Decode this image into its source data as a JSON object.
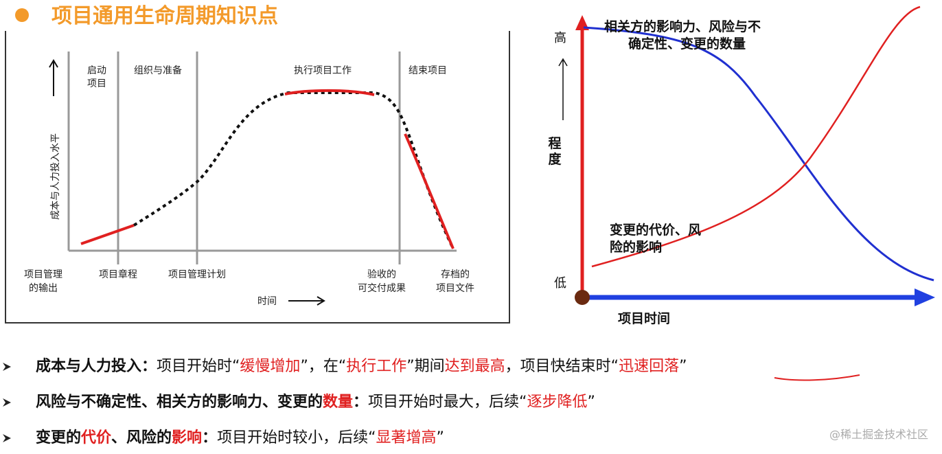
{
  "header": {
    "title": "项目通用生命周期知识点"
  },
  "left_diagram": {
    "y_label": "成本与人力投入水平",
    "phases": [
      [
        "启动",
        "项目"
      ],
      [
        "组织与准备"
      ],
      [
        "执行项目工作"
      ],
      [
        "结束项目"
      ]
    ],
    "milestones": [
      [
        "项目管理",
        "的输出"
      ],
      [
        "项目章程"
      ],
      [
        "项目管理计划"
      ],
      [
        "验收的",
        "可交付成果"
      ],
      [
        "存档的",
        "项目文件"
      ]
    ],
    "x_label": "时间"
  },
  "right_diagram": {
    "high": "高",
    "low": "低",
    "y_label": [
      "程",
      "度"
    ],
    "blue_curve_label": [
      "相关方的影响力、风险与不",
      "确定性、变更的数量"
    ],
    "red_curve_label": [
      "变更的代价、风",
      "险的影响"
    ],
    "x_label": "项目时间"
  },
  "bullets": [
    [
      {
        "text": "成本与人力投入：",
        "bold": true
      },
      {
        "text": "项目开始时“"
      },
      {
        "text": "缓慢增加",
        "color": "#e02020"
      },
      {
        "text": "”，在“"
      },
      {
        "text": "执行工作",
        "color": "#e02020"
      },
      {
        "text": "”期间"
      },
      {
        "text": "达到最高",
        "color": "#e02020"
      },
      {
        "text": "，项目快结束时“"
      },
      {
        "text": "迅速回落",
        "color": "#e02020"
      },
      {
        "text": "”"
      }
    ],
    [
      {
        "text": "风险与不确定性、相关方的影响力、变更的",
        "bold": true
      },
      {
        "text": "数量",
        "bold": true,
        "color": "#e02020"
      },
      {
        "text": "：",
        "bold": true
      },
      {
        "text": "项目开始时最大，后续“"
      },
      {
        "text": "逐步降低",
        "color": "#e02020"
      },
      {
        "text": "”"
      }
    ],
    [
      {
        "text": "变更的",
        "bold": true
      },
      {
        "text": "代价",
        "bold": true,
        "color": "#e02020"
      },
      {
        "text": "、风险的",
        "bold": true
      },
      {
        "text": "影响",
        "bold": true,
        "color": "#e02020"
      },
      {
        "text": "：",
        "bold": true
      },
      {
        "text": "项目开始时较小，后续“"
      },
      {
        "text": "显著增高",
        "color": "#e02020"
      },
      {
        "text": "”"
      }
    ]
  ],
  "watermark": "@稀土掘金技术社区"
}
